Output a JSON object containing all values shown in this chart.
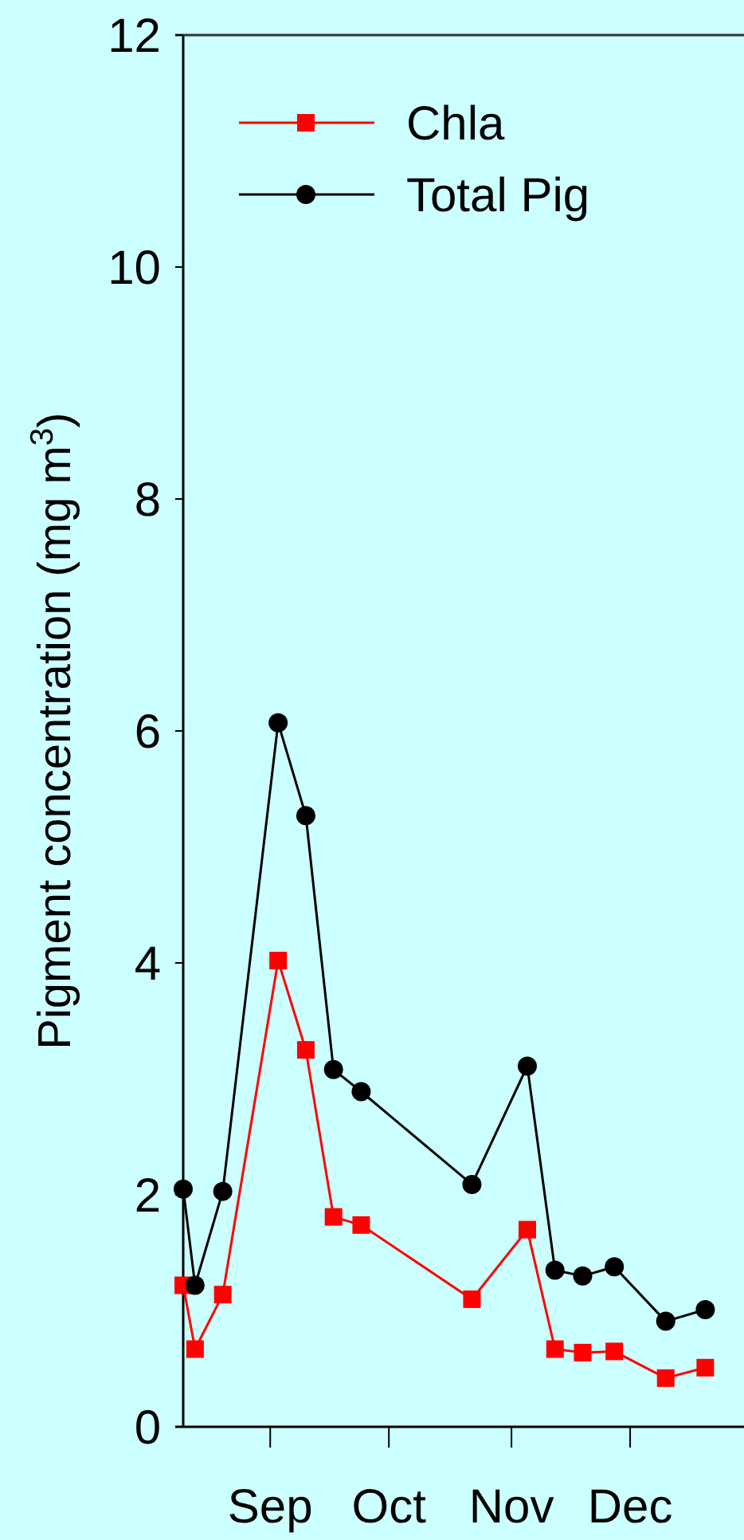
{
  "chart_data": {
    "type": "line",
    "ylabel": "Pigment concentration (mg m$^{3}$)",
    "xlim": [
      "--08-10",
      "--12-31"
    ],
    "ylim": [
      0,
      12
    ],
    "yticks": [
      0,
      2,
      4,
      6,
      8,
      10,
      12
    ],
    "xticks": [
      {
        "value": "--09-01",
        "label": "Sep"
      },
      {
        "value": "--10-01",
        "label": "Oct"
      },
      {
        "value": "--11-01",
        "label": "Nov"
      },
      {
        "value": "--12-01",
        "label": "Dec"
      }
    ],
    "legend": "top left",
    "grid": false,
    "series": [
      {
        "name": "Chla",
        "color": "#ff0000",
        "marker": "square",
        "x": [
          "--08-10",
          "--08-13",
          "--08-20",
          "--09-03",
          "--09-10",
          "--09-17",
          "--09-24",
          "--10-22",
          "--11-05",
          "--11-12",
          "--11-19",
          "--11-27",
          "--12-10",
          "--12-20"
        ],
        "values": [
          1.22,
          0.67,
          1.14,
          4.02,
          3.25,
          1.81,
          1.74,
          1.1,
          1.7,
          0.67,
          0.64,
          0.65,
          0.42,
          0.51
        ]
      },
      {
        "name": "Total Pig",
        "color": "#000000",
        "marker": "circle",
        "x": [
          "--08-10",
          "--08-13",
          "--08-20",
          "--09-03",
          "--09-10",
          "--09-17",
          "--09-24",
          "--10-22",
          "--11-05",
          "--11-12",
          "--11-19",
          "--11-27",
          "--12-10",
          "--12-20"
        ],
        "values": [
          2.05,
          1.22,
          2.03,
          6.07,
          5.27,
          3.08,
          2.89,
          2.09,
          3.11,
          1.35,
          1.3,
          1.38,
          0.91,
          1.01
        ]
      }
    ]
  }
}
